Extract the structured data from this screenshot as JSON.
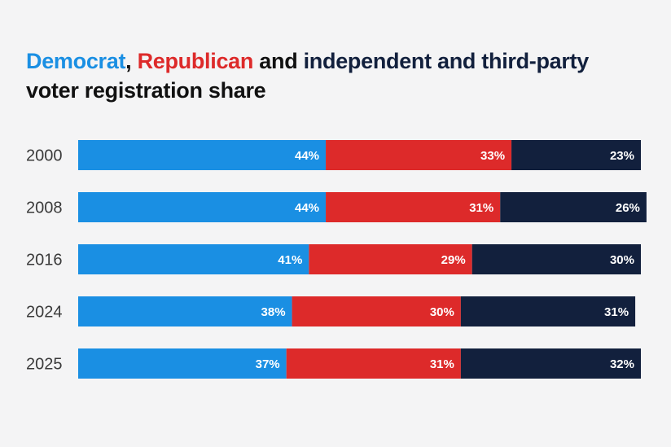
{
  "title": {
    "part_dem": "Democrat",
    "sep1": ", ",
    "part_rep": "Republican",
    "sep2": " and ",
    "part_ind": "independent and third-party",
    "line2": "voter registration share"
  },
  "colors": {
    "democrat": "#1a8fe3",
    "republican": "#dd2a2a",
    "independent": "#12203d",
    "background": "#f4f4f5"
  },
  "chart_data": {
    "type": "bar",
    "orientation": "horizontal-stacked-100",
    "title": "Democrat, Republican and independent and third-party voter registration share",
    "categories": [
      "2000",
      "2008",
      "2016",
      "2024",
      "2025"
    ],
    "series": [
      {
        "name": "Democrat",
        "values": [
          44,
          44,
          41,
          38,
          37
        ],
        "labels": [
          "44%",
          "44%",
          "41%",
          "38%",
          "37%"
        ]
      },
      {
        "name": "Republican",
        "values": [
          33,
          31,
          29,
          30,
          31
        ],
        "labels": [
          "33%",
          "31%",
          "29%",
          "30%",
          "31%"
        ]
      },
      {
        "name": "independent and third-party",
        "values": [
          23,
          26,
          30,
          31,
          32
        ],
        "labels": [
          "23%",
          "26%",
          "30%",
          "31%",
          "32%"
        ]
      }
    ],
    "xlim": [
      0,
      100
    ],
    "grid": false,
    "legend": "title"
  }
}
